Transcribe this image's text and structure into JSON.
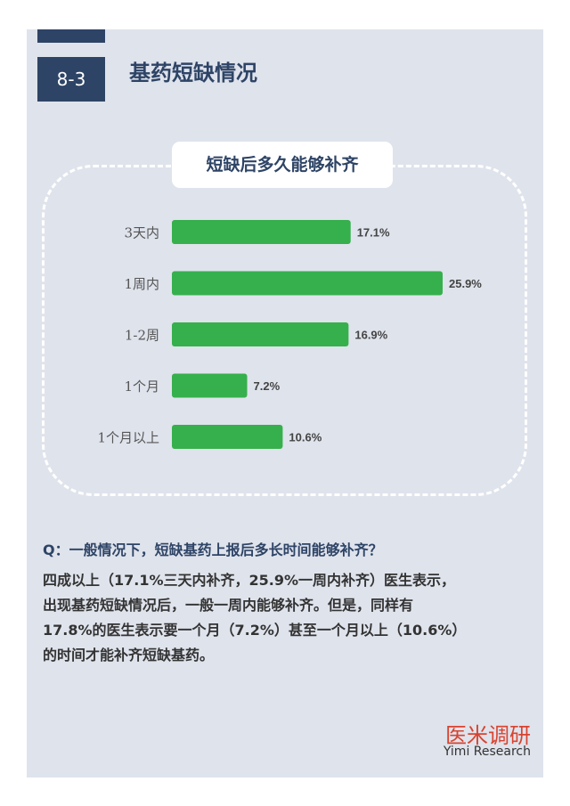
{
  "section": {
    "number": "8-3",
    "title": "基药短缺情况"
  },
  "chart_data": {
    "type": "bar",
    "orientation": "horizontal",
    "title": "短缺后多久能够补齐",
    "categories": [
      "3天内",
      "1周内",
      "1-2周",
      "1个月",
      "1个月以上"
    ],
    "values": [
      17.1,
      25.9,
      16.9,
      7.2,
      10.6
    ],
    "value_labels": [
      "17.1%",
      "25.9%",
      "16.9%",
      "7.2%",
      "10.6%"
    ],
    "xlim": [
      0,
      25.9
    ],
    "bar_color": "#36b04c",
    "grid": false,
    "legend": "none"
  },
  "text": {
    "question": "Q：一般情况下，短缺基药上报后多长时间能够补齐？",
    "paragraph_lines": [
      "四成以上（17.1%三天内补齐，25.9%一周内补齐）医生表示，",
      "出现基药短缺情况后，一般一周内能够补齐。但是，同样有",
      "17.8%的医生表示要一个月（7.2%）甚至一个月以上（10.6%）",
      "的时间才能补齐短缺基药。"
    ]
  },
  "brand": {
    "name_cn": "医米调研",
    "name_en": "Yimi Research"
  },
  "colors": {
    "navy": "#2e4466",
    "panel": "#dfe3ec",
    "bar": "#36b04c",
    "brand_red": "#d9432f"
  }
}
